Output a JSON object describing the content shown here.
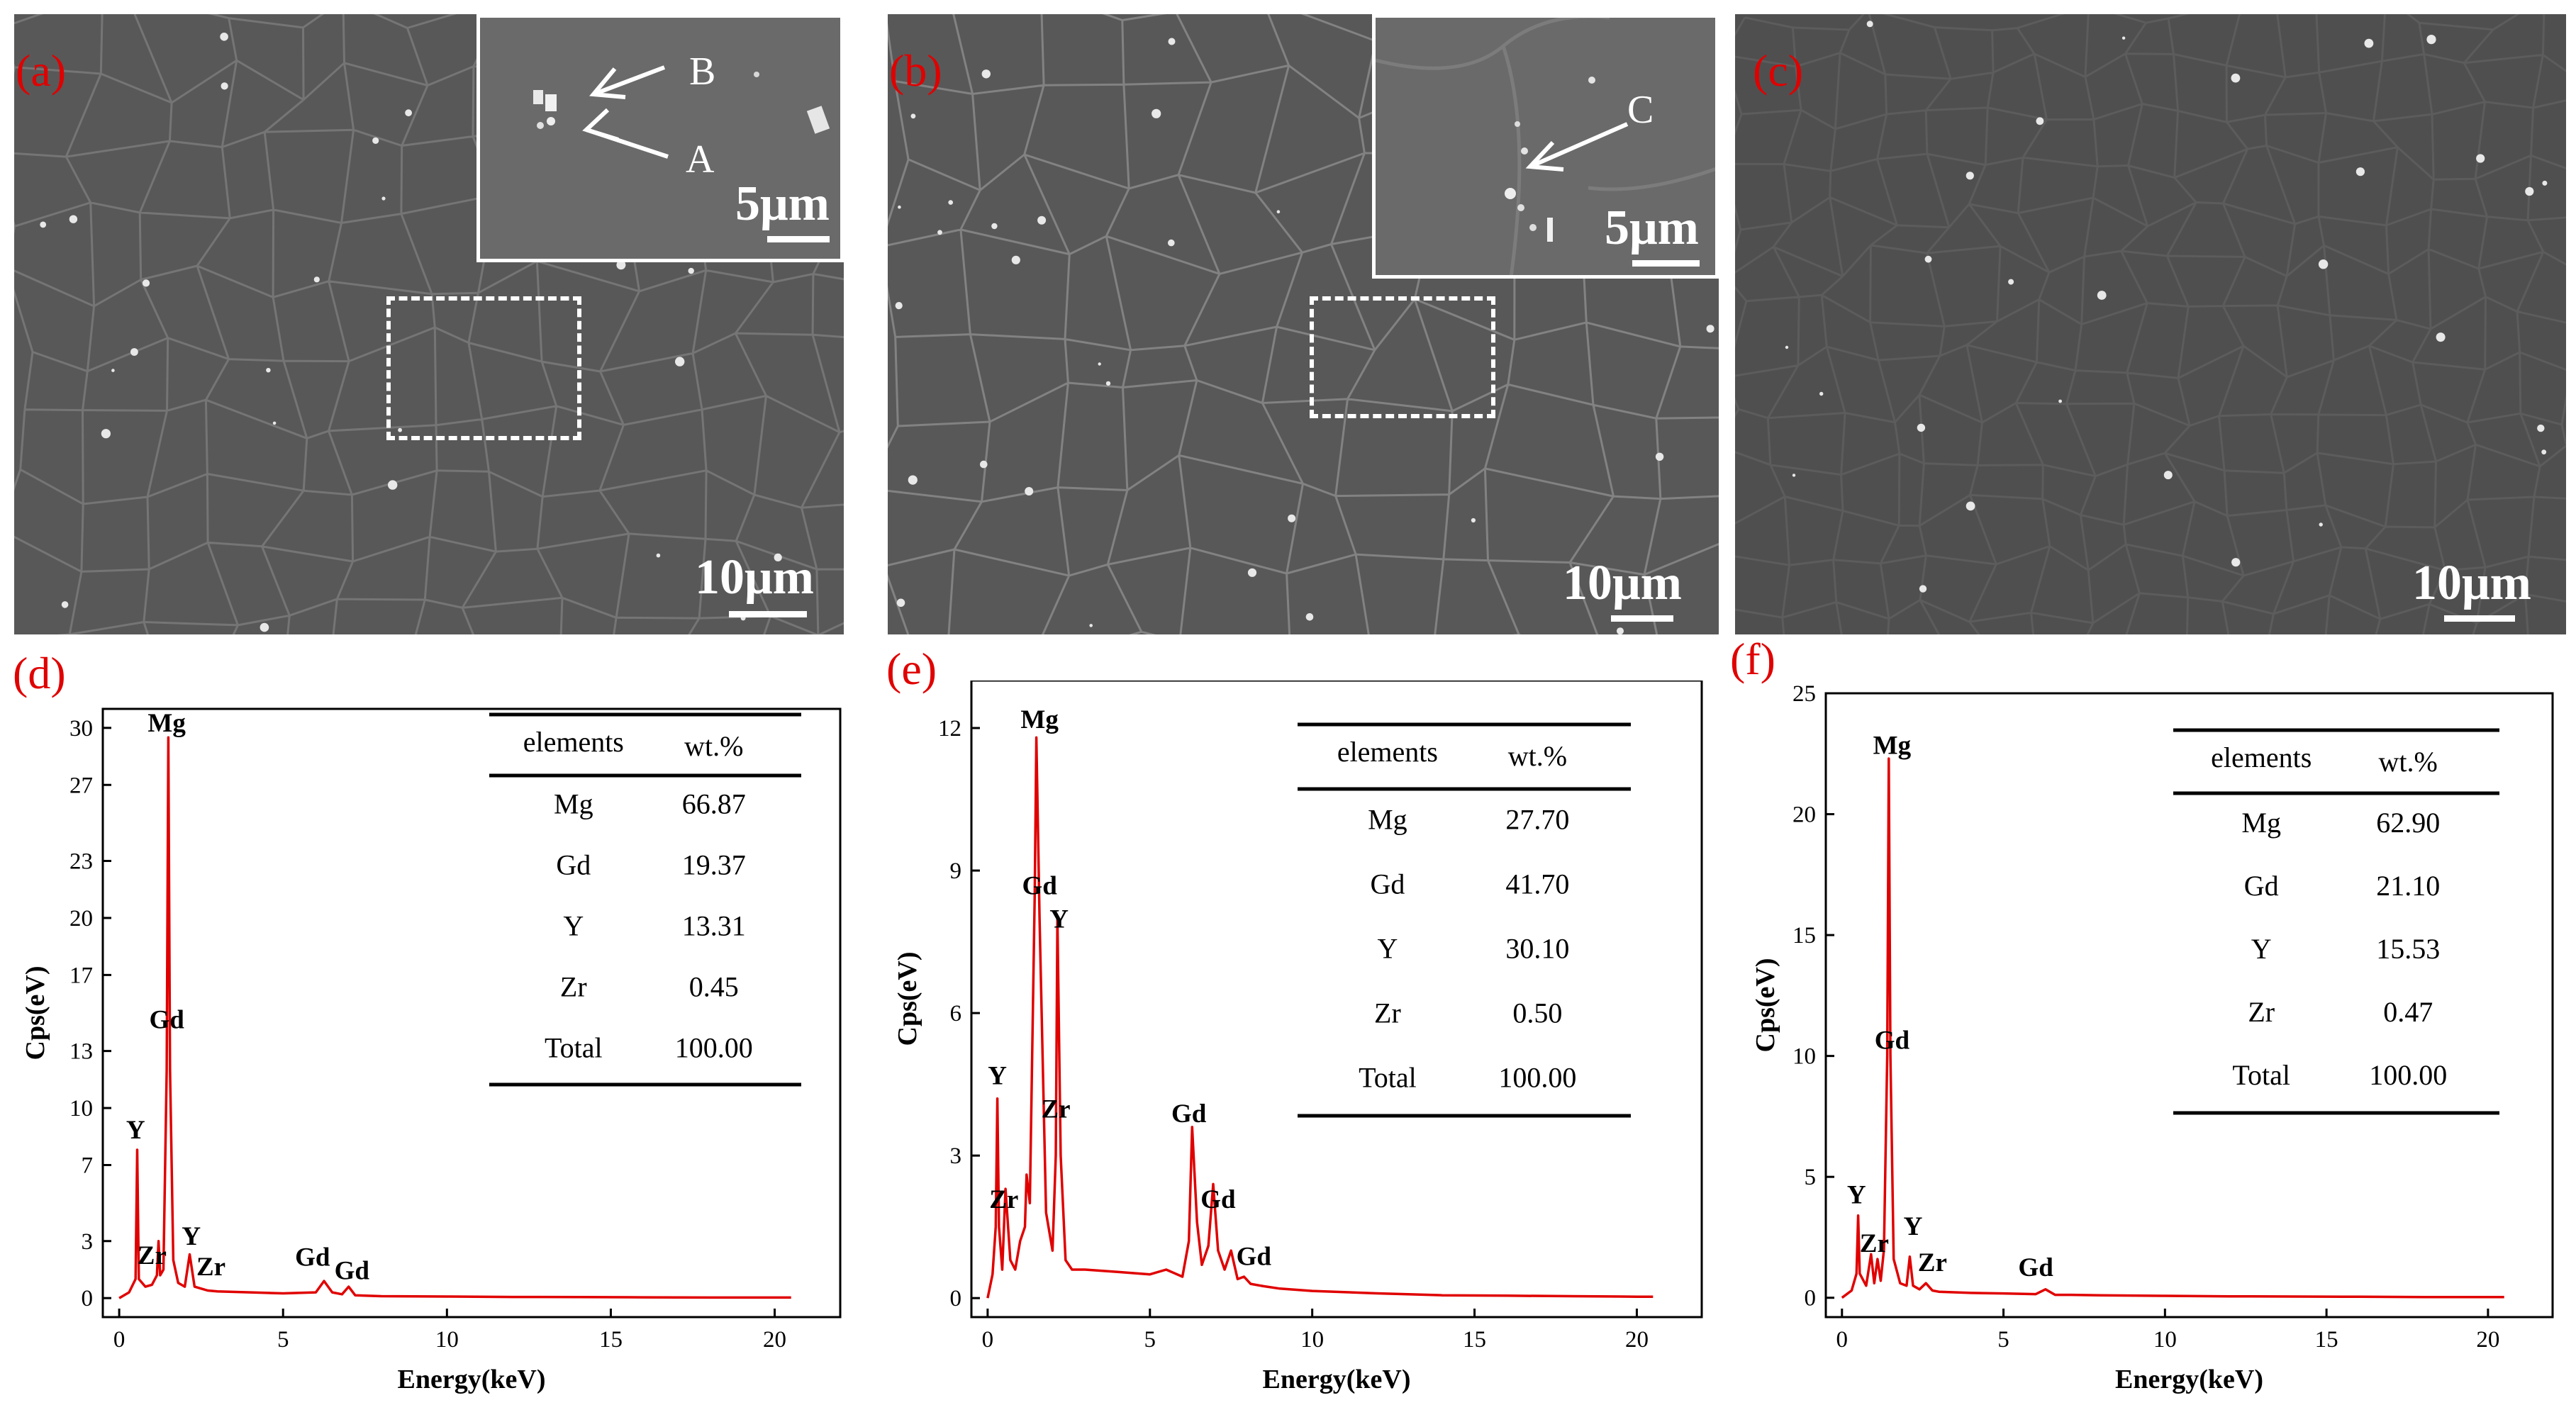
{
  "sem_panels": [
    {
      "id": "a",
      "label": "(a)",
      "scale_bar": "10μm",
      "inset": {
        "scale_bar": "5μm",
        "points": [
          "B",
          "A"
        ]
      }
    },
    {
      "id": "b",
      "label": "(b)",
      "scale_bar": "10μm",
      "inset": {
        "scale_bar": "5μm",
        "points": [
          "C"
        ]
      }
    },
    {
      "id": "c",
      "label": "(c)",
      "scale_bar": "10μm"
    }
  ],
  "chart_data": [
    {
      "type": "line",
      "panel_label": "(d)",
      "xlabel": "Energy(keV)",
      "ylabel": "Cps(eV)",
      "xlim": [
        -0.5,
        22
      ],
      "ylim": [
        -1,
        31
      ],
      "x_ticks": [
        0,
        5,
        10,
        15,
        20
      ],
      "y_ticks": [
        0,
        3,
        7,
        10,
        13,
        17,
        20,
        23,
        27,
        30
      ],
      "line_color": "#e00000",
      "series": [
        {
          "x": [
            0,
            0.3,
            0.5,
            0.55,
            0.6,
            0.8,
            1.0,
            1.15,
            1.2,
            1.25,
            1.35,
            1.45,
            1.5,
            1.55,
            1.65,
            1.8,
            2.0,
            2.15,
            2.3,
            2.5,
            2.7,
            3.0,
            4.0,
            5.0,
            6.0,
            6.25,
            6.5,
            6.8,
            7.0,
            7.2,
            8.0,
            10,
            12,
            14,
            16,
            18,
            20,
            20.5
          ],
          "y": [
            0,
            0.3,
            1,
            7.8,
            1,
            0.6,
            0.7,
            1.2,
            3,
            1.2,
            1.5,
            12,
            29.5,
            12,
            2,
            0.8,
            0.6,
            2.3,
            0.6,
            0.5,
            0.4,
            0.35,
            0.3,
            0.25,
            0.3,
            0.9,
            0.3,
            0.2,
            0.6,
            0.15,
            0.1,
            0.08,
            0.06,
            0.05,
            0.04,
            0.03,
            0.03,
            0.03
          ]
        }
      ],
      "peak_labels": [
        {
          "text": "Mg",
          "x": 1.45,
          "y": 29.8
        },
        {
          "text": "Gd",
          "x": 1.45,
          "y": 14.2
        },
        {
          "text": "Y",
          "x": 0.5,
          "y": 8.4
        },
        {
          "text": "Zr",
          "x": 1.0,
          "y": 1.8
        },
        {
          "text": "Y",
          "x": 2.2,
          "y": 2.8
        },
        {
          "text": "Zr",
          "x": 2.8,
          "y": 1.2
        },
        {
          "text": "Gd",
          "x": 5.9,
          "y": 1.7
        },
        {
          "text": "Gd",
          "x": 7.1,
          "y": 1.0
        }
      ],
      "table": {
        "headers": [
          "elements",
          "wt.%"
        ],
        "rows": [
          [
            "Mg",
            "66.87"
          ],
          [
            "Gd",
            "19.37"
          ],
          [
            "Y",
            "13.31"
          ],
          [
            "Zr",
            "0.45"
          ],
          [
            "Total",
            "100.00"
          ]
        ]
      }
    },
    {
      "type": "line",
      "panel_label": "(e)",
      "xlabel": "Energy(keV)",
      "ylabel": "Cps(eV)",
      "xlim": [
        -0.5,
        22
      ],
      "ylim": [
        -0.4,
        13
      ],
      "x_ticks": [
        0,
        5,
        10,
        15,
        20
      ],
      "y_ticks": [
        0,
        3,
        6,
        9,
        12
      ],
      "line_color": "#e00000",
      "series": [
        {
          "x": [
            0,
            0.15,
            0.25,
            0.3,
            0.35,
            0.45,
            0.55,
            0.7,
            0.85,
            1.0,
            1.15,
            1.2,
            1.3,
            1.45,
            1.5,
            1.6,
            1.8,
            2.0,
            2.1,
            2.15,
            2.25,
            2.4,
            2.6,
            3.0,
            4.0,
            5.0,
            5.5,
            6.0,
            6.2,
            6.3,
            6.45,
            6.6,
            6.8,
            6.95,
            7.1,
            7.3,
            7.5,
            7.7,
            7.9,
            8.1,
            8.5,
            9,
            10,
            12,
            14,
            16,
            18,
            20,
            20.5
          ],
          "y": [
            0,
            0.5,
            1.5,
            4.2,
            1.5,
            0.6,
            2.3,
            0.8,
            0.6,
            1.2,
            1.5,
            2.6,
            2.0,
            8.5,
            11.8,
            8.0,
            1.8,
            1.0,
            3.0,
            8.0,
            3.0,
            0.8,
            0.6,
            0.6,
            0.55,
            0.5,
            0.6,
            0.45,
            1.2,
            3.6,
            1.6,
            0.7,
            1.1,
            2.4,
            1.0,
            0.6,
            1.0,
            0.4,
            0.45,
            0.3,
            0.25,
            0.2,
            0.15,
            0.1,
            0.06,
            0.05,
            0.04,
            0.03,
            0.03
          ]
        }
      ],
      "peak_labels": [
        {
          "text": "Mg",
          "x": 1.6,
          "y": 12.0
        },
        {
          "text": "Gd",
          "x": 1.6,
          "y": 8.5
        },
        {
          "text": "Y",
          "x": 2.2,
          "y": 7.8
        },
        {
          "text": "Y",
          "x": 0.3,
          "y": 4.5
        },
        {
          "text": "Zr",
          "x": 0.5,
          "y": 1.9
        },
        {
          "text": "Zr",
          "x": 2.1,
          "y": 3.8
        },
        {
          "text": "Gd",
          "x": 6.2,
          "y": 3.7
        },
        {
          "text": "Gd",
          "x": 7.1,
          "y": 1.9
        },
        {
          "text": "Gd",
          "x": 8.2,
          "y": 0.7
        }
      ],
      "table": {
        "headers": [
          "elements",
          "wt.%"
        ],
        "rows": [
          [
            "Mg",
            "27.70"
          ],
          [
            "Gd",
            "41.70"
          ],
          [
            "Y",
            "30.10"
          ],
          [
            "Zr",
            "0.50"
          ],
          [
            "Total",
            "100.00"
          ]
        ]
      }
    },
    {
      "type": "line",
      "panel_label": "(f)",
      "xlabel": "Energy(keV)",
      "ylabel": "Cps(eV)",
      "xlim": [
        -0.5,
        22
      ],
      "ylim": [
        -0.8,
        25
      ],
      "x_ticks": [
        0,
        5,
        10,
        15,
        20
      ],
      "y_ticks": [
        0,
        5,
        10,
        15,
        20,
        25
      ],
      "line_color": "#e00000",
      "series": [
        {
          "x": [
            0,
            0.3,
            0.45,
            0.5,
            0.55,
            0.75,
            0.9,
            1.0,
            1.1,
            1.2,
            1.3,
            1.4,
            1.45,
            1.5,
            1.6,
            1.8,
            2.0,
            2.1,
            2.2,
            2.4,
            2.6,
            2.8,
            3.0,
            4.0,
            5.0,
            6.0,
            6.3,
            6.6,
            7.0,
            8.0,
            10,
            12,
            14,
            16,
            18,
            20,
            20.5
          ],
          "y": [
            0,
            0.3,
            1,
            3.4,
            1,
            0.5,
            1.8,
            0.6,
            1.6,
            0.7,
            2.0,
            10,
            22.3,
            10,
            1.6,
            0.6,
            0.5,
            1.7,
            0.5,
            0.35,
            0.6,
            0.3,
            0.25,
            0.2,
            0.18,
            0.15,
            0.35,
            0.12,
            0.12,
            0.1,
            0.08,
            0.06,
            0.05,
            0.04,
            0.03,
            0.03,
            0.03
          ]
        }
      ],
      "peak_labels": [
        {
          "text": "Mg",
          "x": 1.55,
          "y": 22.5
        },
        {
          "text": "Gd",
          "x": 1.55,
          "y": 10.3
        },
        {
          "text": "Y",
          "x": 0.45,
          "y": 3.9
        },
        {
          "text": "Zr",
          "x": 1.0,
          "y": 1.9
        },
        {
          "text": "Y",
          "x": 2.2,
          "y": 2.6
        },
        {
          "text": "Zr",
          "x": 2.8,
          "y": 1.1
        },
        {
          "text": "Gd",
          "x": 6.0,
          "y": 0.9
        }
      ],
      "table": {
        "headers": [
          "elements",
          "wt.%"
        ],
        "rows": [
          [
            "Mg",
            "62.90"
          ],
          [
            "Gd",
            "21.10"
          ],
          [
            "Y",
            "15.53"
          ],
          [
            "Zr",
            "0.47"
          ],
          [
            "Total",
            "100.00"
          ]
        ]
      }
    }
  ]
}
